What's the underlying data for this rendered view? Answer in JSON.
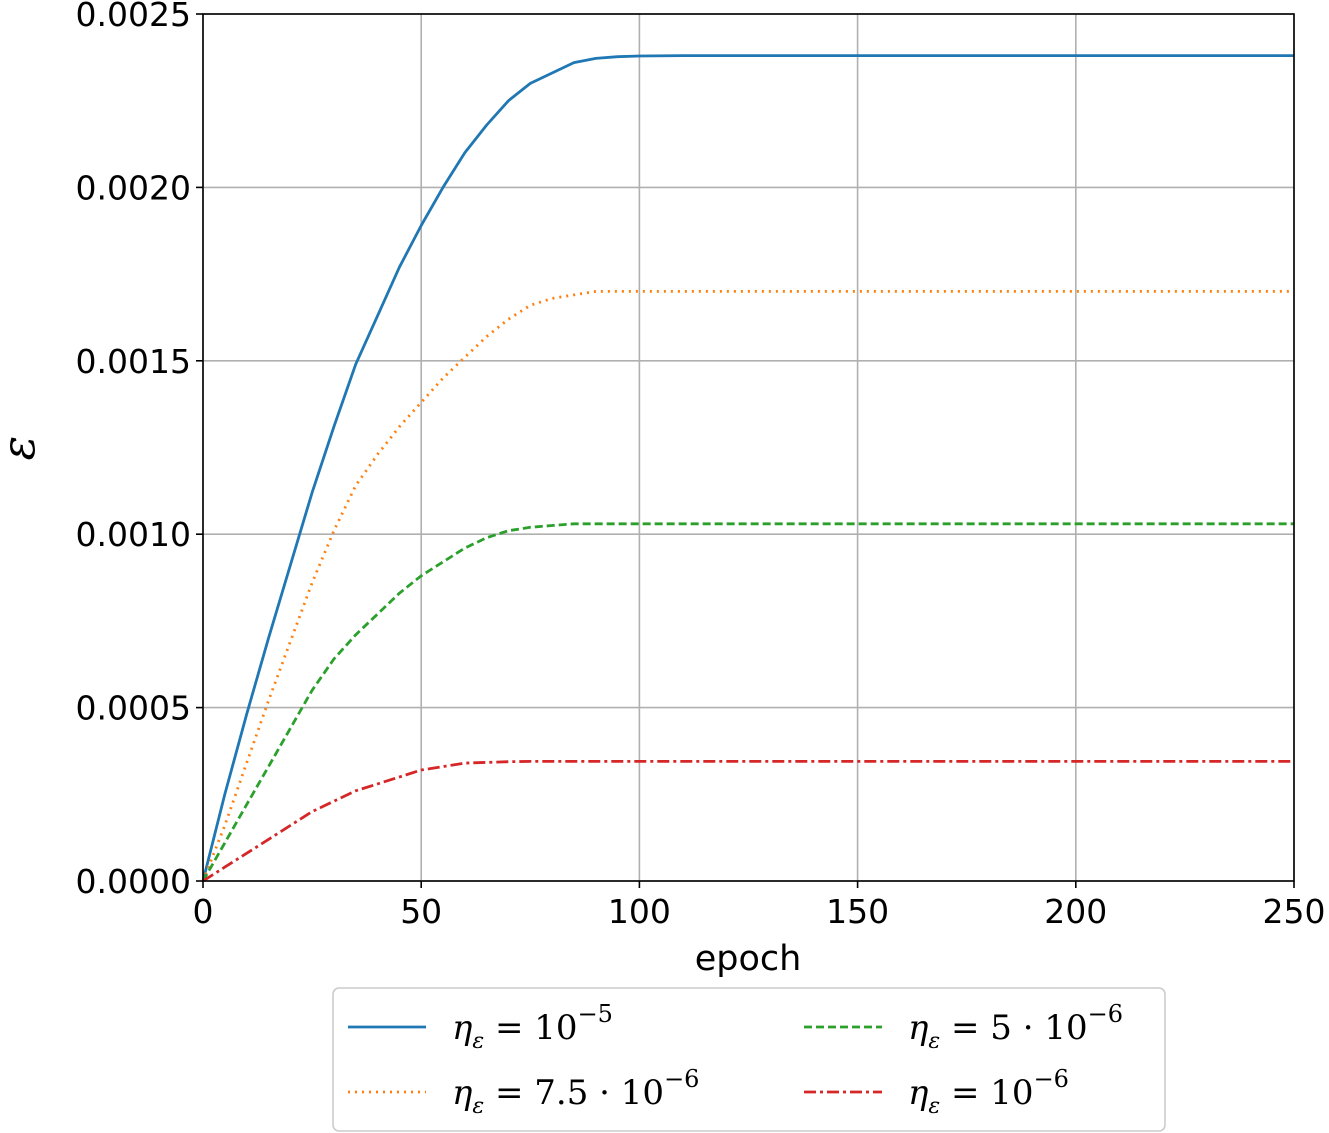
{
  "chart_data": {
    "type": "line",
    "xlabel": "epoch",
    "ylabel": "ε",
    "xlim": [
      0,
      250
    ],
    "ylim": [
      0,
      0.0025
    ],
    "xticks": [
      "0",
      "50",
      "100",
      "150",
      "200",
      "250"
    ],
    "yticks": [
      "0.0000",
      "0.0005",
      "0.0010",
      "0.0015",
      "0.0020",
      "0.0025"
    ],
    "grid": true,
    "legend_position": "bottom-center",
    "x": [
      0,
      5,
      10,
      15,
      20,
      25,
      30,
      35,
      40,
      45,
      50,
      55,
      60,
      65,
      70,
      75,
      80,
      85,
      90,
      95,
      100,
      110,
      120,
      150,
      200,
      250
    ],
    "series": [
      {
        "name": "η_ε = 10^−5",
        "label_parts": [
          "η",
          "ε",
          " = 10",
          "−5"
        ],
        "color": "#1f77b4",
        "dash": "solid",
        "values": [
          0.0,
          0.00025,
          0.00048,
          0.0007,
          0.00091,
          0.00112,
          0.00131,
          0.00149,
          0.00163,
          0.00177,
          0.00189,
          0.002,
          0.0021,
          0.00218,
          0.00225,
          0.0023,
          0.00233,
          0.00236,
          0.002372,
          0.002377,
          0.002379,
          0.00238,
          0.00238,
          0.00238,
          0.00238,
          0.00238
        ]
      },
      {
        "name": "η_ε = 7.5·10^−6",
        "label_parts": [
          "η",
          "ε",
          " = 7.5 · 10",
          "−6"
        ],
        "color": "#ff7f0e",
        "dash": "dotted",
        "values": [
          0.0,
          0.00016,
          0.00034,
          0.00052,
          0.00069,
          0.00086,
          0.00101,
          0.00114,
          0.00123,
          0.00131,
          0.00138,
          0.00145,
          0.00151,
          0.00157,
          0.00162,
          0.00166,
          0.00168,
          0.00169,
          0.0017,
          0.0017,
          0.0017,
          0.0017,
          0.0017,
          0.0017,
          0.0017,
          0.0017
        ]
      },
      {
        "name": "η_ε = 5·10^−6",
        "label_parts": [
          "η",
          "ε",
          " = 5 · 10",
          "−6"
        ],
        "color": "#2ca02c",
        "dash": "dashed",
        "values": [
          0.0,
          0.00011,
          0.00022,
          0.00033,
          0.00044,
          0.00055,
          0.00064,
          0.00071,
          0.00077,
          0.00083,
          0.00088,
          0.00092,
          0.00096,
          0.00099,
          0.00101,
          0.00102,
          0.001025,
          0.00103,
          0.00103,
          0.00103,
          0.00103,
          0.00103,
          0.00103,
          0.00103,
          0.00103,
          0.00103
        ]
      },
      {
        "name": "η_ε = 10^−6",
        "label_parts": [
          "η",
          "ε",
          " = 10",
          "−6"
        ],
        "color": "#d62728",
        "dash": "dashdot",
        "values": [
          0.0,
          4e-05,
          8e-05,
          0.00012,
          0.00016,
          0.0002,
          0.00023,
          0.00026,
          0.00028,
          0.0003,
          0.00032,
          0.00033,
          0.00034,
          0.000342,
          0.000344,
          0.000345,
          0.000345,
          0.000345,
          0.000345,
          0.000345,
          0.000345,
          0.000345,
          0.000345,
          0.000345,
          0.000345,
          0.000345
        ]
      }
    ]
  }
}
